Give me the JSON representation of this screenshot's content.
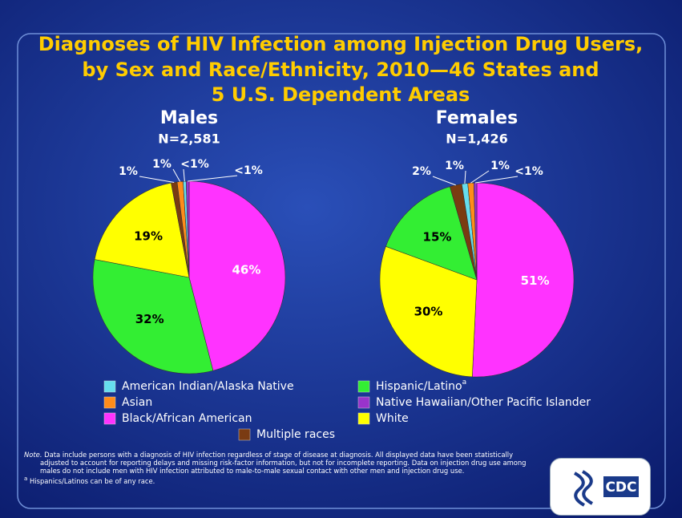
{
  "title_lines": [
    "Diagnoses of HIV Infection among Injection Drug Users,",
    "by Sex and Race/Ethnicity, 2010—46 States and",
    "5 U.S. Dependent Areas"
  ],
  "chart_data": [
    {
      "type": "pie",
      "title": "Males",
      "subtitle": "N=2,581",
      "categories": [
        "Black/African American",
        "Hispanic/Latino",
        "White",
        "Multiple races",
        "Asian",
        "American Indian/Alaska Native",
        "Native Hawaiian/Other Pacific Islander"
      ],
      "values": [
        46,
        32,
        19,
        1,
        1,
        0.5,
        0.5
      ],
      "value_labels": [
        "46%",
        "32%",
        "19%",
        "1%",
        "1%",
        "<1%",
        "<1%"
      ],
      "colors": [
        "#ff33ff",
        "#33ee33",
        "#ffff00",
        "#7a3b12",
        "#ff8c1a",
        "#66ddee",
        "#9933cc"
      ]
    },
    {
      "type": "pie",
      "title": "Females",
      "subtitle": "N=1,426",
      "categories": [
        "Black/African American",
        "White",
        "Hispanic/Latino",
        "Multiple races",
        "American Indian/Alaska Native",
        "Asian",
        "Native Hawaiian/Other Pacific Islander"
      ],
      "values": [
        51,
        30,
        15,
        2,
        1,
        1,
        0.5
      ],
      "value_labels": [
        "51%",
        "30%",
        "15%",
        "2%",
        "1%",
        "1%",
        "<1%"
      ],
      "colors": [
        "#ff33ff",
        "#ffff00",
        "#33ee33",
        "#7a3b12",
        "#66ddee",
        "#ff8c1a",
        "#9933cc"
      ]
    }
  ],
  "footnote": {
    "marker": "a",
    "text": "Hispanics/Latinos can be of any race."
  },
  "note_label": "Note.",
  "note_text": "Data include persons with a diagnosis of HIV infection regardless of stage of disease at diagnosis. All displayed data have been statistically adjusted to account for reporting delays and missing risk-factor information, but not for incomplete reporting. Data on injection drug use among males do not include men with HIV infection attributed to male-to-male sexual contact with other men and injection drug use.",
  "logo": "CDC"
}
